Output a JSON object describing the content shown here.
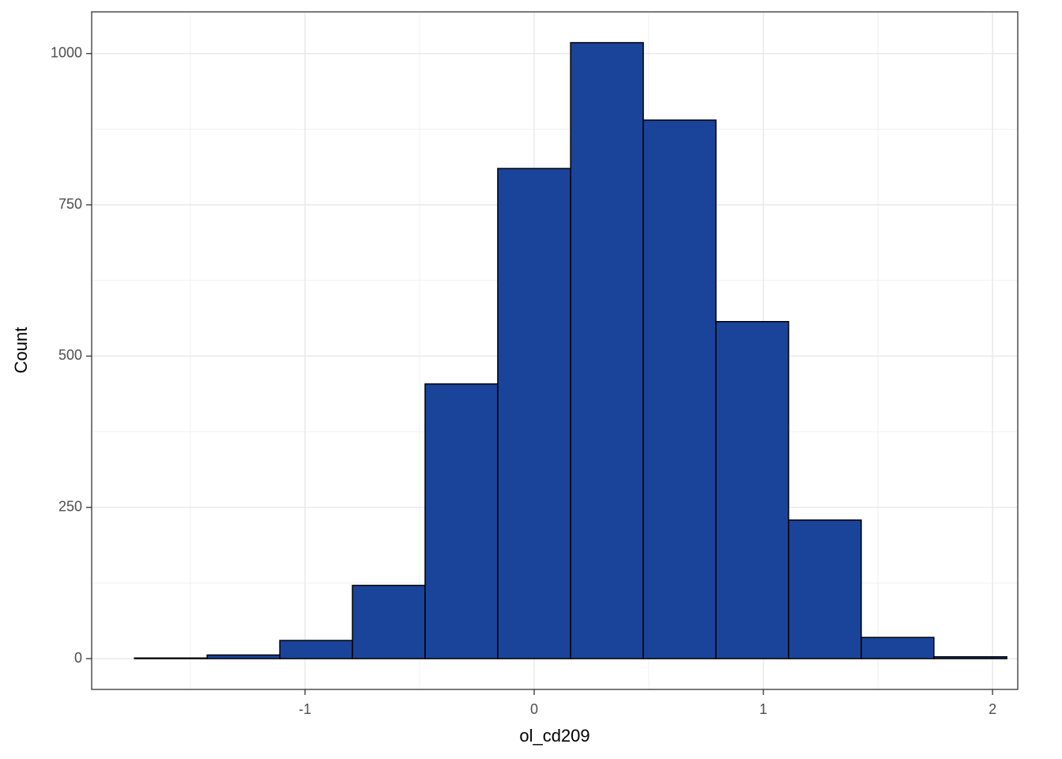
{
  "chart_data": {
    "type": "histogram",
    "x_label": "ol_cd209",
    "y_label": "Count",
    "bins": [
      -1.744,
      -1.427,
      -1.11,
      -0.793,
      -0.476,
      -0.159,
      0.159,
      0.476,
      0.793,
      1.11,
      1.427,
      1.744,
      2.062
    ],
    "values": [
      1,
      6,
      30,
      121,
      454,
      810,
      1018,
      890,
      557,
      229,
      35,
      3
    ],
    "color": "#1a449a",
    "edge_color": "#000000",
    "xlim": [
      -1.931,
      2.11
    ],
    "ylim": [
      -50.9,
      1068.9
    ],
    "xticks": [
      -1,
      0,
      1,
      2
    ],
    "yticks": [
      0,
      250,
      500,
      750,
      1000
    ],
    "x_minor_ticks": [
      -1.5,
      -0.5,
      0.5,
      1.5
    ],
    "y_minor_ticks": [
      125,
      375,
      625,
      875
    ],
    "grid": true
  }
}
